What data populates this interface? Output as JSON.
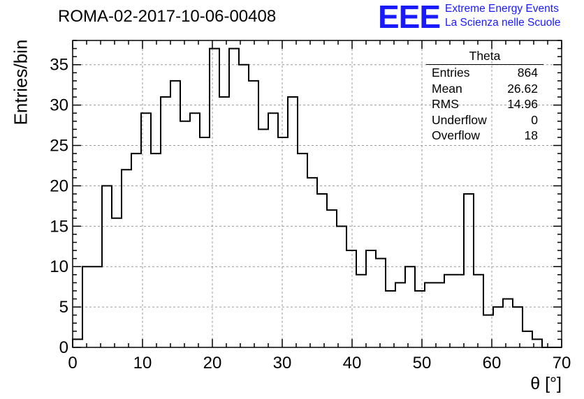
{
  "title": "ROMA-02-2017-10-06-00408",
  "logo": {
    "mark": "EEE",
    "line1": "Extreme Energy Events",
    "line2": "La Scienza nelle Scuole",
    "color": "#1a1aff"
  },
  "stats_box": {
    "title": "Theta",
    "rows": [
      {
        "label": "Entries",
        "value": "864"
      },
      {
        "label": "Mean",
        "value": "26.62"
      },
      {
        "label": "RMS",
        "value": "14.96"
      },
      {
        "label": "Underflow",
        "value": "0"
      },
      {
        "label": "Overflow",
        "value": "18"
      }
    ]
  },
  "chart_data": {
    "type": "bar",
    "style": "step-histogram",
    "title": "ROMA-02-2017-10-06-00408",
    "xlabel": "θ [°]",
    "ylabel": "Entries/bin",
    "xlim": [
      0,
      70
    ],
    "ylim": [
      0,
      38
    ],
    "grid": true,
    "bin_width": 1.4,
    "bin_start": 0,
    "x_ticks": [
      0,
      10,
      20,
      30,
      40,
      50,
      60,
      70
    ],
    "y_ticks": [
      0,
      5,
      10,
      15,
      20,
      25,
      30,
      35
    ],
    "values": [
      1,
      10,
      10,
      20,
      16,
      22,
      24,
      29,
      24,
      31,
      33,
      28,
      29,
      26,
      37,
      31,
      37,
      35,
      33,
      27,
      29,
      26,
      31,
      24,
      21,
      19,
      17,
      15,
      12,
      9,
      12,
      11,
      7,
      8,
      10,
      7,
      8,
      8,
      9,
      9,
      19,
      9,
      4,
      5,
      6,
      5,
      2,
      1,
      0,
      0
    ],
    "line_color": "#000000",
    "grid_color": "#9a9a9a"
  }
}
